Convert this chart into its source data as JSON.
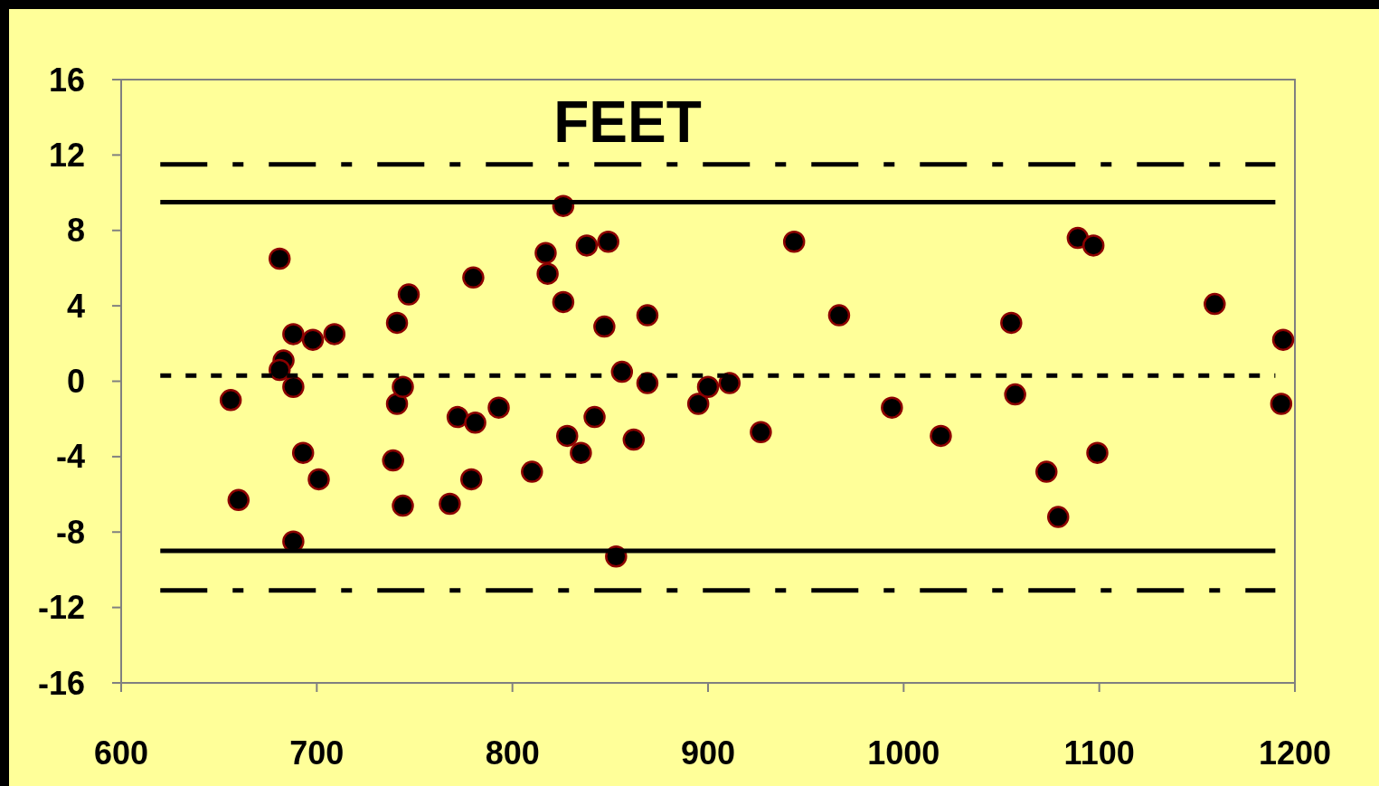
{
  "chart_data": {
    "type": "scatter",
    "title": "FEET",
    "xlim": [
      600,
      1200
    ],
    "xticks": [
      600,
      700,
      800,
      900,
      1000,
      1100,
      1200
    ],
    "ylim": [
      -16,
      16
    ],
    "yticks": [
      -16,
      -12,
      -8,
      -4,
      0,
      4,
      8,
      12,
      16
    ],
    "grid": false,
    "series": [
      {
        "color": "#000000",
        "marker": "circle",
        "x": [
          656,
          660,
          681,
          683,
          681,
          688,
          688,
          688,
          693,
          698,
          701,
          709,
          741,
          741,
          739,
          744,
          747,
          744,
          768,
          772,
          781,
          779,
          780,
          793,
          810,
          817,
          818,
          826,
          826,
          828,
          835,
          838,
          842,
          849,
          847,
          853,
          856,
          862,
          869,
          869,
          895,
          900,
          911,
          927,
          944,
          967,
          994,
          1019,
          1055,
          1057,
          1073,
          1079,
          1089,
          1097,
          1099,
          1159,
          1194,
          1193
        ],
        "values": [
          -1.0,
          -6.3,
          6.5,
          1.1,
          0.6,
          2.5,
          -0.3,
          -8.5,
          -3.8,
          2.2,
          -5.2,
          2.5,
          3.1,
          -1.2,
          -4.2,
          -0.3,
          4.6,
          -6.6,
          -6.5,
          -1.9,
          -2.2,
          -5.2,
          5.5,
          -1.4,
          -4.8,
          6.8,
          5.7,
          9.3,
          4.2,
          -2.9,
          -3.8,
          7.2,
          -1.9,
          7.4,
          2.9,
          -9.3,
          0.5,
          -3.1,
          3.5,
          -0.1,
          -1.2,
          -0.3,
          -0.1,
          -2.7,
          7.4,
          3.5,
          -1.4,
          -2.9,
          3.1,
          -0.7,
          -4.8,
          -7.2,
          7.6,
          7.2,
          -3.8,
          4.1,
          2.2,
          -1.2
        ]
      },
      {
        "type": "line",
        "color": "#000000",
        "line_style": "dashed",
        "x": [
          620,
          1190
        ],
        "values": [
          11.5,
          11.5
        ]
      },
      {
        "type": "line",
        "color": "#000000",
        "line_style": "solid",
        "x": [
          620,
          1190
        ],
        "values": [
          9.5,
          9.5
        ]
      },
      {
        "type": "line",
        "color": "#000000",
        "line_style": "dotted",
        "x": [
          620,
          1190
        ],
        "values": [
          0.3,
          0.3
        ]
      },
      {
        "type": "line",
        "color": "#000000",
        "line_style": "solid",
        "x": [
          620,
          1190
        ],
        "values": [
          -9.0,
          -9.0
        ]
      },
      {
        "type": "line",
        "color": "#000000",
        "line_style": "dashed",
        "x": [
          620,
          1190
        ],
        "values": [
          -11.1,
          -11.1
        ]
      }
    ]
  }
}
